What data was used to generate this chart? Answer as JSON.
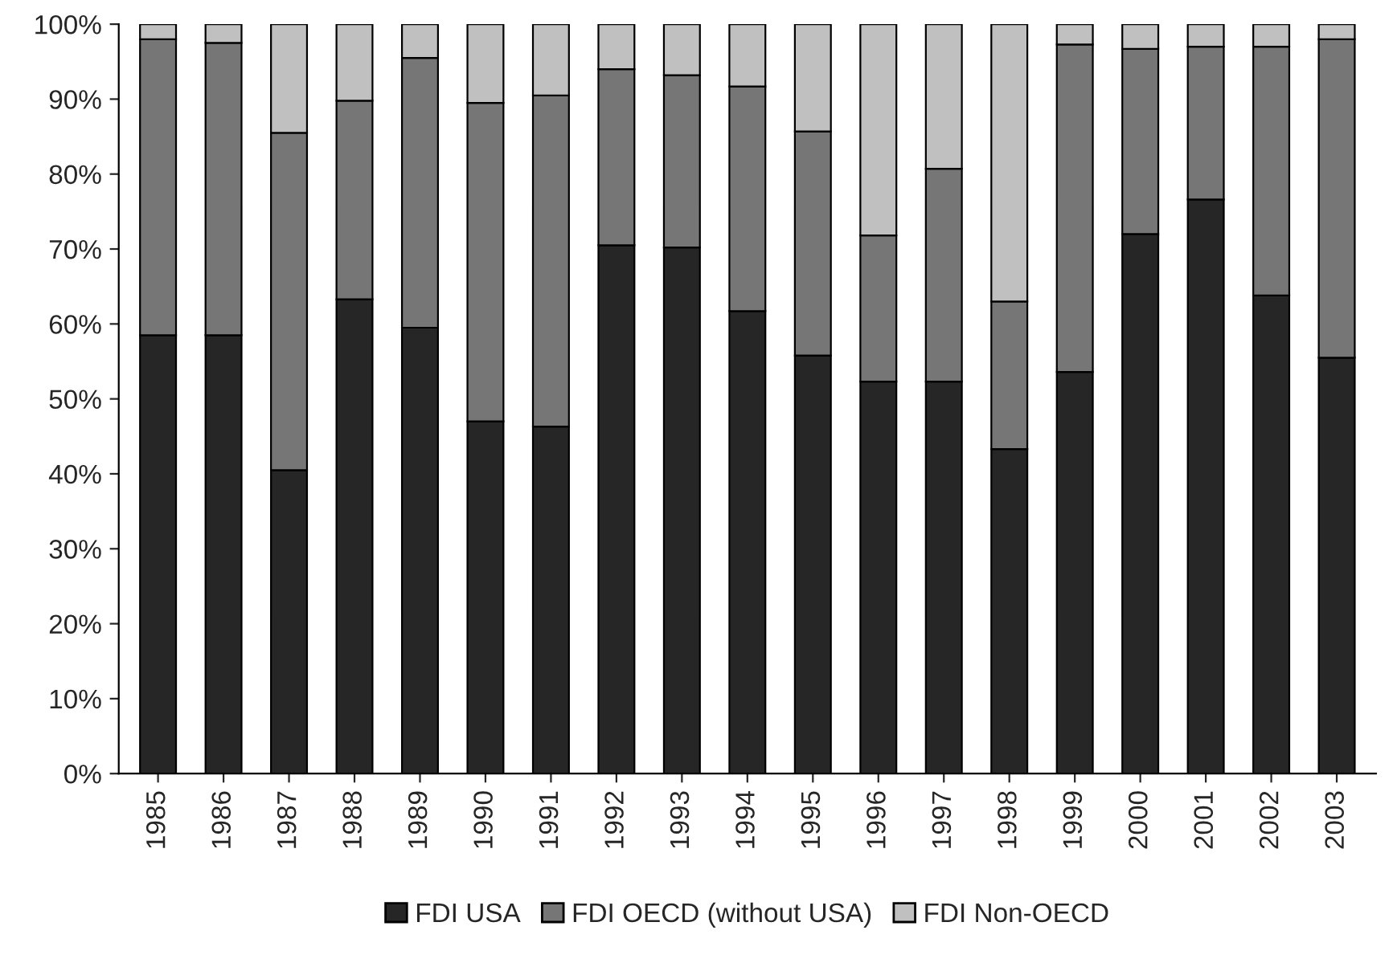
{
  "chart_data": {
    "type": "bar",
    "stacked": true,
    "categories": [
      "1985",
      "1986",
      "1987",
      "1988",
      "1989",
      "1990",
      "1991",
      "1992",
      "1993",
      "1994",
      "1995",
      "1996",
      "1997",
      "1998",
      "1999",
      "2000",
      "2001",
      "2002",
      "2003"
    ],
    "series": [
      {
        "name": "FDI USA",
        "color": "#262626",
        "values": [
          58.5,
          58.5,
          40.5,
          63.3,
          59.5,
          47,
          46.3,
          70.5,
          70.2,
          61.7,
          55.8,
          52.3,
          52.3,
          43.3,
          53.6,
          72,
          76.6,
          63.8,
          55.5
        ]
      },
      {
        "name": "FDI OECD (without USA)",
        "color": "#767676",
        "values": [
          39.5,
          39,
          45,
          26.5,
          36,
          42.5,
          44.2,
          23.5,
          23,
          30,
          29.9,
          19.5,
          28.4,
          19.7,
          43.7,
          24.7,
          20.4,
          33.2,
          42.5
        ]
      },
      {
        "name": "FDI Non-OECD",
        "color": "#c0c0c0",
        "values": [
          2,
          2.5,
          14.5,
          10.2,
          4.5,
          10.5,
          9.5,
          6,
          6.8,
          8.3,
          14.3,
          28.2,
          19.3,
          37,
          2.7,
          3.3,
          3,
          3,
          2
        ]
      }
    ],
    "ylim": [
      0,
      100
    ],
    "yticks": [
      {
        "value": 0,
        "label": "0%"
      },
      {
        "value": 10,
        "label": "10%"
      },
      {
        "value": 20,
        "label": "20%"
      },
      {
        "value": 30,
        "label": "30%"
      },
      {
        "value": 40,
        "label": "40%"
      },
      {
        "value": 50,
        "label": "50%"
      },
      {
        "value": 60,
        "label": "60%"
      },
      {
        "value": 70,
        "label": "70%"
      },
      {
        "value": 80,
        "label": "80%"
      },
      {
        "value": 90,
        "label": "90%"
      },
      {
        "value": 100,
        "label": "100%"
      }
    ],
    "grid": false,
    "legend": "bottom"
  }
}
